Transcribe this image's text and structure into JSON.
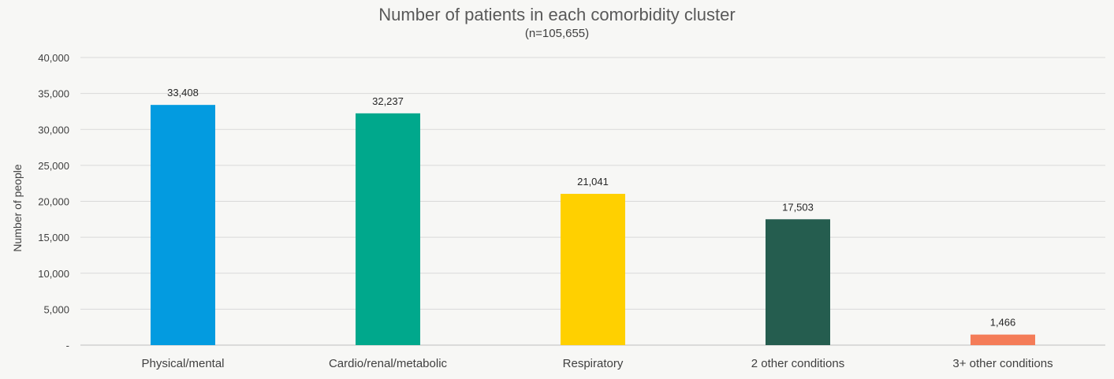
{
  "chart_data": {
    "type": "bar",
    "title": "Number of patients in each comorbidity cluster",
    "subtitle": "(n=105,655)",
    "xlabel": "",
    "ylabel": "Number of people",
    "categories": [
      "Physical/mental",
      "Cardio/renal/metabolic",
      "Respiratory",
      "2 other conditions",
      "3+ other conditions"
    ],
    "values": [
      33408,
      32237,
      21041,
      17503,
      1466
    ],
    "data_labels": [
      "33,408",
      "32,237",
      "21,041",
      "17,503",
      "1,466"
    ],
    "colors": [
      "#039be0",
      "#00a88c",
      "#ffd000",
      "#255d4f",
      "#f47c58"
    ],
    "ylim": [
      0,
      40000
    ],
    "yticks": [
      0,
      5000,
      10000,
      15000,
      20000,
      25000,
      30000,
      35000,
      40000
    ],
    "ytick_labels": [
      "-",
      "5,000",
      "10,000",
      "15,000",
      "20,000",
      "25,000",
      "30,000",
      "35,000",
      "40,000"
    ],
    "grid": true,
    "legend": "none"
  }
}
